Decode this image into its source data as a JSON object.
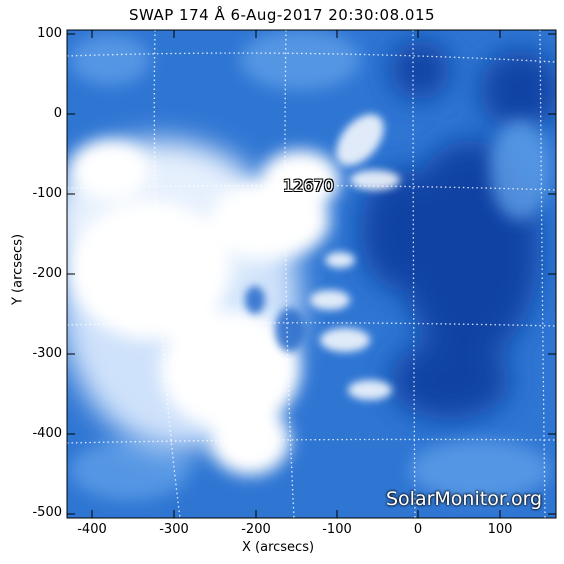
{
  "title": "SWAP 174 Å  6-Aug-2017 20:30:08.015",
  "axes": {
    "xlabel": "X (arcsecs)",
    "ylabel": "Y (arcsecs)",
    "xlim": [
      -440,
      170
    ],
    "ylim": [
      -510,
      105
    ],
    "x_ticks": [
      "-400",
      "-300",
      "-200",
      "-100",
      "0",
      "100"
    ],
    "y_ticks": [
      "100",
      "0",
      "-100",
      "-200",
      "-300",
      "-400",
      "-500"
    ]
  },
  "image": {
    "instrument": "SWAP",
    "colormap_light": "#ffffff",
    "colormap_mid": "#3f86de",
    "colormap_dark": "#0a3c9e"
  },
  "region_label": "12670",
  "watermark": "SolarMonitor.org"
}
